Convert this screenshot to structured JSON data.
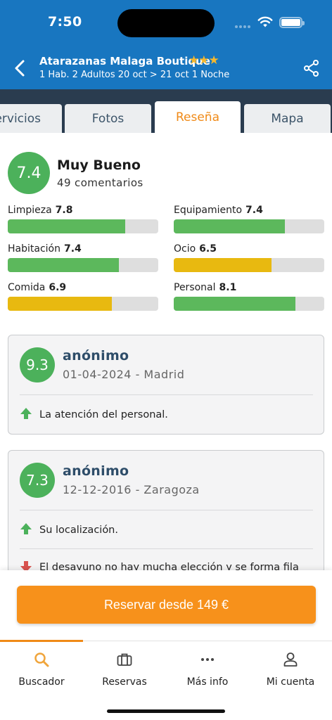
{
  "status_bar": {
    "time": "7:50"
  },
  "header": {
    "hotel_name": "Atarazanas Malaga Boutique",
    "stars": "★★★",
    "booking_info": "1 Hab. 2 Adultos 20 oct > 21 oct 1 Noche",
    "accent_color": "#1876c0",
    "star_color": "#f5b82e"
  },
  "tabs": [
    {
      "label": "ervicios",
      "active": false
    },
    {
      "label": "Fotos",
      "active": false
    },
    {
      "label": "Reseña",
      "active": true
    },
    {
      "label": "Mapa",
      "active": false
    }
  ],
  "summary": {
    "score": "7.4",
    "label": "Muy Bueno",
    "count": "49 comentarios",
    "score_color": "#4cb15b"
  },
  "metrics": [
    {
      "label": "Limpieza",
      "value": "7.8",
      "fraction": 0.78,
      "color": "green"
    },
    {
      "label": "Equipamiento",
      "value": "7.4",
      "fraction": 0.74,
      "color": "green"
    },
    {
      "label": "Habitación",
      "value": "7.4",
      "fraction": 0.74,
      "color": "green"
    },
    {
      "label": "Ocio",
      "value": "6.5",
      "fraction": 0.65,
      "color": "yellow"
    },
    {
      "label": "Comida",
      "value": "6.9",
      "fraction": 0.69,
      "color": "yellow"
    },
    {
      "label": "Personal",
      "value": "8.1",
      "fraction": 0.81,
      "color": "green"
    }
  ],
  "reviews": [
    {
      "score": "9.3",
      "name": "anónimo",
      "meta": "01-04-2024 - Madrid",
      "pro": "La atención del personal."
    },
    {
      "score": "7.3",
      "name": "anónimo",
      "meta": "12-12-2016 - Zaragoza",
      "pro": "Su localización.",
      "con": "El desayuno no hay mucha elección y se forma fila"
    }
  ],
  "cta": {
    "label": "Reservar desde 149 €",
    "color": "#f7911b"
  },
  "bottom_nav": [
    {
      "label": "Buscador",
      "icon": "search-icon",
      "active": true
    },
    {
      "label": "Reservas",
      "icon": "briefcase-icon",
      "active": false
    },
    {
      "label": "Más info",
      "icon": "more-icon",
      "active": false
    },
    {
      "label": "Mi cuenta",
      "icon": "user-icon",
      "active": false
    }
  ]
}
